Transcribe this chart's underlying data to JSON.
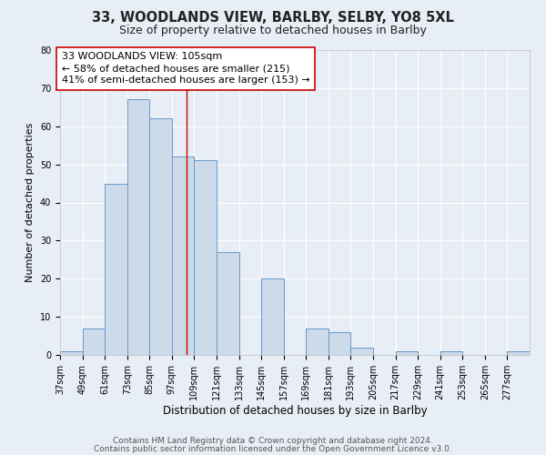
{
  "title1": "33, WOODLANDS VIEW, BARLBY, SELBY, YO8 5XL",
  "title2": "Size of property relative to detached houses in Barlby",
  "xlabel": "Distribution of detached houses by size in Barlby",
  "ylabel": "Number of detached properties",
  "bin_edges": [
    37,
    49,
    61,
    73,
    85,
    97,
    109,
    121,
    133,
    145,
    157,
    169,
    181,
    193,
    205,
    217,
    229,
    241,
    253,
    265,
    277,
    289
  ],
  "counts": [
    1,
    7,
    45,
    67,
    62,
    52,
    51,
    27,
    0,
    20,
    0,
    7,
    6,
    2,
    0,
    1,
    0,
    1,
    0,
    0,
    1
  ],
  "property_size": 105,
  "bar_color": "#ccdaea",
  "bar_edge_color": "#6699cc",
  "highlight_line_color": "#cc0000",
  "annotation_box_color": "#cc0000",
  "annotation_line1": "33 WOODLANDS VIEW: 105sqm",
  "annotation_line2": "← 58% of detached houses are smaller (215)",
  "annotation_line3": "41% of semi-detached houses are larger (153) →",
  "ylim": [
    0,
    80
  ],
  "yticks": [
    0,
    10,
    20,
    30,
    40,
    50,
    60,
    70,
    80
  ],
  "footer1": "Contains HM Land Registry data © Crown copyright and database right 2024.",
  "footer2": "Contains public sector information licensed under the Open Government Licence v3.0.",
  "background_color": "#e8eef5",
  "plot_background_color": "#e8eef5",
  "grid_color": "#ffffff",
  "title1_fontsize": 10.5,
  "title2_fontsize": 9,
  "xlabel_fontsize": 8.5,
  "ylabel_fontsize": 8,
  "tick_fontsize": 7,
  "footer_fontsize": 6.5,
  "annotation_fontsize": 8
}
